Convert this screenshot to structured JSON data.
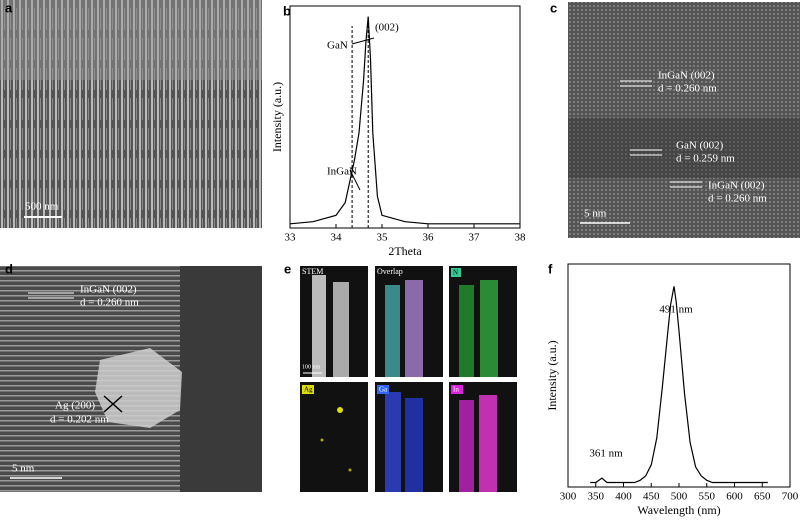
{
  "panels": {
    "a": {
      "label": "a",
      "scale_bar": "500 nm"
    },
    "c": {
      "label": "c",
      "notes": [
        "InGaN (002)",
        "d = 0.260 nm",
        "GaN (002)",
        "d = 0.259 nm",
        "InGaN (002)",
        "d = 0.260 nm"
      ],
      "scale_bar": "5 nm"
    },
    "d": {
      "label": "d",
      "notes": [
        "InGaN (002)",
        "d = 0.260 nm",
        "Ag (200)",
        "d = 0.202 nm"
      ],
      "scale_bar": "5 nm"
    },
    "e": {
      "label": "e",
      "tiles": [
        "STEM",
        "Overlap",
        "N",
        "Ag",
        "Ga",
        "In"
      ],
      "scale_bar": "100 nm"
    }
  },
  "chart_data": [
    {
      "type": "line",
      "panel": "b",
      "xlabel": "2Theta",
      "ylabel": "Intensity (a.u.)",
      "x": [
        33,
        33.5,
        34,
        34.2,
        34.3,
        34.4,
        34.5,
        34.6,
        34.65,
        34.7,
        34.75,
        34.8,
        34.9,
        35,
        35.5,
        36,
        37,
        38
      ],
      "values": [
        0.02,
        0.03,
        0.06,
        0.12,
        0.22,
        0.32,
        0.45,
        0.7,
        0.88,
        1.0,
        0.8,
        0.45,
        0.15,
        0.06,
        0.03,
        0.02,
        0.02,
        0.02
      ],
      "reference_lines": [
        34.35,
        34.7
      ],
      "annotations": [
        "(002)",
        "GaN",
        "InGaN"
      ],
      "color": "#000000",
      "xlim": [
        33,
        38
      ],
      "xticks": [
        33,
        34,
        35,
        36,
        37,
        38
      ],
      "ylim": [
        0,
        1.05
      ]
    },
    {
      "type": "line",
      "panel": "f",
      "xlabel": "Wavelength (nm)",
      "ylabel": "Intensity (a.u.)",
      "x": [
        340,
        350,
        361,
        370,
        380,
        400,
        420,
        430,
        440,
        450,
        460,
        470,
        480,
        485,
        491,
        495,
        500,
        510,
        520,
        530,
        540,
        550,
        560,
        600,
        660
      ],
      "values": [
        0.02,
        0.02,
        0.04,
        0.02,
        0.02,
        0.02,
        0.02,
        0.03,
        0.05,
        0.1,
        0.22,
        0.45,
        0.7,
        0.82,
        0.9,
        0.83,
        0.7,
        0.42,
        0.2,
        0.09,
        0.05,
        0.03,
        0.02,
        0.02,
        0.02
      ],
      "annotations": [
        "491 nm",
        "361 nm"
      ],
      "color": "#000000",
      "xlim": [
        300,
        700
      ],
      "xticks": [
        300,
        350,
        400,
        450,
        500,
        550,
        600,
        650,
        700
      ],
      "ylim": [
        0,
        1
      ]
    }
  ]
}
